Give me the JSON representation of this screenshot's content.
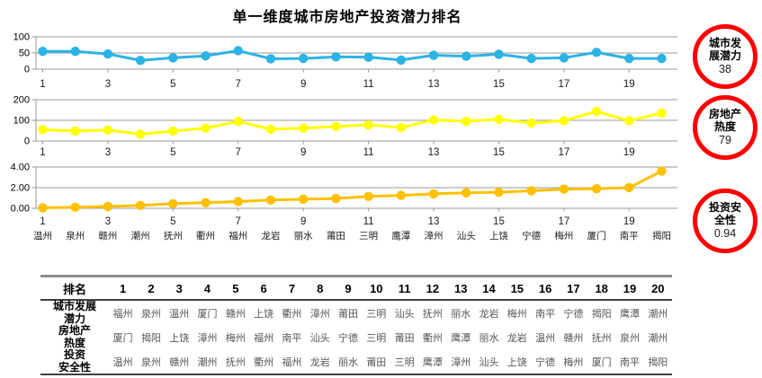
{
  "title": "单一维度城市房地产投资潜力排名",
  "chart_data": [
    {
      "type": "line",
      "name": "城市发展潜力",
      "color": "#2BB3E6",
      "x": [
        1,
        2,
        3,
        4,
        5,
        6,
        7,
        8,
        9,
        10,
        11,
        12,
        13,
        14,
        15,
        16,
        17,
        18,
        19,
        20
      ],
      "values": [
        55,
        55,
        47,
        27,
        35,
        41,
        57,
        32,
        33,
        38,
        37,
        28,
        43,
        40,
        46,
        33,
        35,
        52,
        33,
        33
      ],
      "ylim": [
        0,
        100
      ],
      "yticks": [
        0,
        50,
        100
      ],
      "ytick_labels": [
        "0",
        "50",
        "100"
      ],
      "xtick_labels": [
        "1",
        "3",
        "5",
        "7",
        "9",
        "11",
        "13",
        "15",
        "17",
        "19"
      ],
      "grid": true,
      "legend": "none"
    },
    {
      "type": "line",
      "name": "房地产热度",
      "color": "#FFFF00",
      "x": [
        1,
        2,
        3,
        4,
        5,
        6,
        7,
        8,
        9,
        10,
        11,
        12,
        13,
        14,
        15,
        16,
        17,
        18,
        19,
        20
      ],
      "values": [
        55,
        48,
        53,
        33,
        48,
        62,
        95,
        57,
        62,
        70,
        78,
        65,
        102,
        95,
        105,
        87,
        98,
        143,
        98,
        135
      ],
      "ylim": [
        0,
        200
      ],
      "yticks": [
        0,
        100,
        200
      ],
      "ytick_labels": [
        "0",
        "100",
        "200"
      ],
      "xtick_labels": [
        "1",
        "3",
        "5",
        "7",
        "9",
        "11",
        "13",
        "15",
        "17",
        "19"
      ],
      "grid": true,
      "legend": "none"
    },
    {
      "type": "line",
      "name": "投资安全性",
      "color": "#FFC000",
      "x": [
        1,
        2,
        3,
        4,
        5,
        6,
        7,
        8,
        9,
        10,
        11,
        12,
        13,
        14,
        15,
        16,
        17,
        18,
        19,
        20
      ],
      "values": [
        0.05,
        0.1,
        0.18,
        0.28,
        0.45,
        0.55,
        0.65,
        0.8,
        0.88,
        0.95,
        1.15,
        1.25,
        1.4,
        1.5,
        1.55,
        1.7,
        1.85,
        1.9,
        2.0,
        3.6
      ],
      "ylim": [
        0,
        4
      ],
      "yticks": [
        0,
        2,
        4
      ],
      "ytick_labels": [
        "0.00",
        "2.00",
        "4.00"
      ],
      "xtick_labels": [
        "1",
        "3",
        "5",
        "7",
        "9",
        "11",
        "13",
        "15",
        "17",
        "19"
      ],
      "x_city_labels": [
        "温州",
        "泉州",
        "赣州",
        "潮州",
        "抚州",
        "衢州",
        "福州",
        "龙岩",
        "丽水",
        "莆田",
        "三明",
        "鹰潭",
        "漳州",
        "汕头",
        "上饶",
        "宁德",
        "梅州",
        "厦门",
        "南平",
        "揭阳"
      ],
      "grid": true,
      "legend": "none"
    }
  ],
  "badges": [
    {
      "label": "城市发\n展潜力",
      "value": "38"
    },
    {
      "label": "房地产\n热度",
      "value": "79"
    },
    {
      "label": "投资安\n全性",
      "value": "0.94"
    }
  ],
  "table": {
    "rank_header": "排名",
    "ranks": [
      "1",
      "2",
      "3",
      "4",
      "5",
      "6",
      "7",
      "8",
      "9",
      "10",
      "11",
      "12",
      "13",
      "14",
      "15",
      "16",
      "17",
      "18",
      "19",
      "20"
    ],
    "rows": [
      {
        "header": "城市发展\n潜力",
        "cells": [
          "福州",
          "泉州",
          "温州",
          "厦门",
          "赣州",
          "上饶",
          "衢州",
          "漳州",
          "莆田",
          "三明",
          "汕头",
          "抚州",
          "丽水",
          "龙岩",
          "梅州",
          "南平",
          "宁德",
          "揭阳",
          "鹰潭",
          "潮州"
        ]
      },
      {
        "header": "房地产\n热度",
        "cells": [
          "厦门",
          "揭阳",
          "上饶",
          "漳州",
          "梅州",
          "福州",
          "南平",
          "汕头",
          "宁德",
          "三明",
          "莆田",
          "衢州",
          "鹰潭",
          "丽水",
          "龙岩",
          "温州",
          "赣州",
          "抚州",
          "泉州",
          "潮州"
        ]
      },
      {
        "header": "投资\n安全性",
        "cells": [
          "温州",
          "泉州",
          "赣州",
          "潮州",
          "抚州",
          "衢州",
          "福州",
          "龙岩",
          "丽水",
          "莆田",
          "三明",
          "鹰潭",
          "漳州",
          "汕头",
          "上饶",
          "宁德",
          "梅州",
          "厦门",
          "南平",
          "揭阳"
        ]
      }
    ]
  }
}
